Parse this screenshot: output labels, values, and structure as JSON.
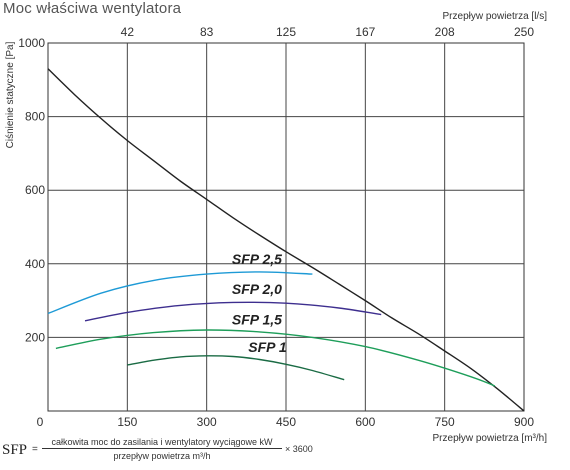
{
  "title": "Moc właściwa wentylatora",
  "chart_data": {
    "type": "line",
    "xlabel": "Przepływ powietrza [m³/h]",
    "x2label": "Przepływ powietrza [l/s]",
    "ylabel": "Ciśnienie statyczne [Pa]",
    "xlim": [
      0,
      900
    ],
    "ylim": [
      0,
      1000
    ],
    "xticks": [
      0,
      150,
      300,
      450,
      600,
      750,
      900
    ],
    "yticks": [
      0,
      200,
      400,
      600,
      800,
      1000
    ],
    "x2ticks": [
      {
        "at": 150,
        "label": "42"
      },
      {
        "at": 300,
        "label": "83"
      },
      {
        "at": 450,
        "label": "125"
      },
      {
        "at": 600,
        "label": "167"
      },
      {
        "at": 750,
        "label": "208"
      },
      {
        "at": 900,
        "label": "250"
      }
    ],
    "grid": true,
    "series": [
      {
        "name": "",
        "color": "#222222",
        "x": [
          0,
          50,
          100,
          150,
          200,
          250,
          300,
          350,
          400,
          450,
          500,
          550,
          600,
          650,
          700,
          750,
          800,
          850,
          900
        ],
        "y": [
          930,
          860,
          795,
          735,
          680,
          625,
          575,
          525,
          478,
          433,
          390,
          345,
          300,
          253,
          210,
          163,
          115,
          60,
          0
        ]
      },
      {
        "name": "SFP 2,5",
        "color": "#1e9ad6",
        "x": [
          0,
          100,
          200,
          300,
          400,
          500
        ],
        "y": [
          265,
          320,
          355,
          372,
          378,
          372
        ]
      },
      {
        "name": "SFP 2,0",
        "color": "#3e2f8f",
        "x": [
          70,
          150,
          250,
          350,
          450,
          550,
          630
        ],
        "y": [
          245,
          268,
          287,
          295,
          293,
          280,
          262
        ]
      },
      {
        "name": "SFP 1,5",
        "color": "#1e9e5a",
        "x": [
          15,
          100,
          200,
          300,
          400,
          500,
          600,
          700,
          800,
          845
        ],
        "y": [
          170,
          195,
          213,
          220,
          215,
          200,
          175,
          138,
          93,
          68
        ]
      },
      {
        "name": "SFP 1",
        "color": "#1a6b44",
        "x": [
          150,
          200,
          250,
          300,
          350,
          400,
          450,
          500,
          560
        ],
        "y": [
          125,
          138,
          147,
          150,
          148,
          140,
          127,
          110,
          85
        ]
      }
    ],
    "annotations": [
      {
        "text": "SFP 2,5",
        "x": 395,
        "y": 400
      },
      {
        "text": "SFP 2,0",
        "x": 395,
        "y": 318
      },
      {
        "text": "SFP 1,5",
        "x": 395,
        "y": 235
      },
      {
        "text": "SFP 1",
        "x": 415,
        "y": 160
      }
    ]
  },
  "formula": {
    "lhs": "SFP",
    "equals": "=",
    "numerator": "całkowita moc do zasilania i wentylatory wyciągowe kW",
    "denominator": "przepływ powietrza m³/h",
    "multiplier": "× 3600"
  }
}
